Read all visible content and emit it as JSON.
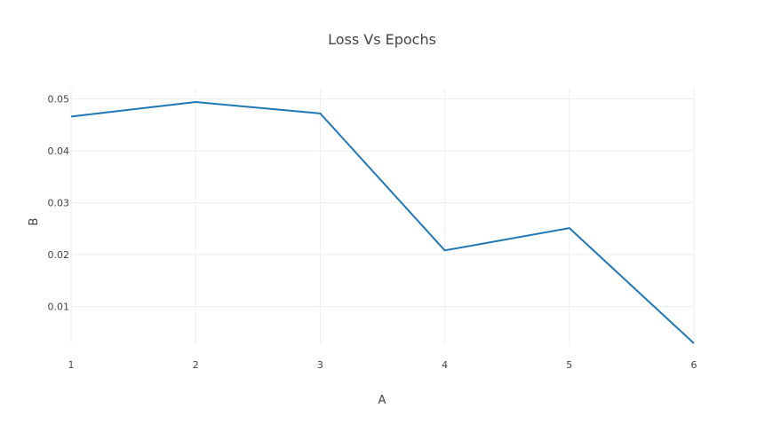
{
  "chart_data": {
    "type": "line",
    "title": "Loss Vs Epochs",
    "xlabel": "A",
    "ylabel": "B",
    "x": [
      1,
      2,
      3,
      4,
      5,
      6
    ],
    "series": [
      {
        "values": [
          0.0466,
          0.0494,
          0.0472,
          0.0208,
          0.0251,
          0.0029
        ]
      }
    ],
    "xlim": [
      1,
      6
    ],
    "ylim": [
      0.0029,
      0.0494
    ],
    "x_ticks": [
      "1",
      "2",
      "3",
      "4",
      "5",
      "6"
    ],
    "y_ticks": [
      "0.01",
      "0.02",
      "0.03",
      "0.04",
      "0.05"
    ],
    "grid": true,
    "colors": {
      "line": "#1f77b4",
      "grid": "#eeeeee",
      "text": "#444444"
    }
  }
}
